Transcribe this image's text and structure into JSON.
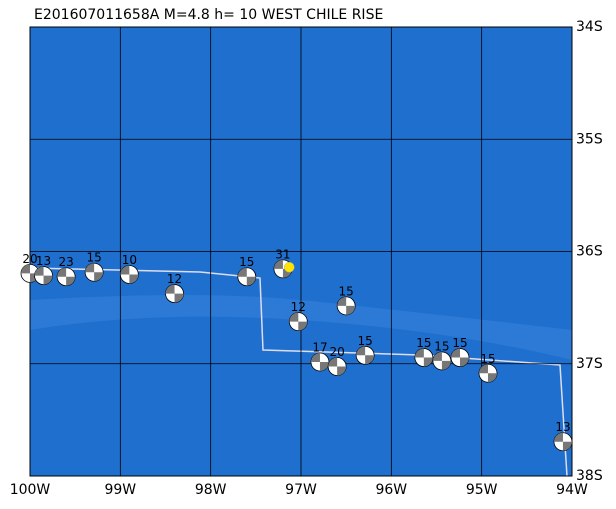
{
  "map": {
    "title": "E201607011658A M=4.8 h= 10 WEST CHILE RISE",
    "xlim": [
      -100,
      -94
    ],
    "ylim": [
      -38,
      -34
    ],
    "xticks": [
      {
        "value": -100,
        "label": "100W"
      },
      {
        "value": -99,
        "label": "99W"
      },
      {
        "value": -98,
        "label": "98W"
      },
      {
        "value": -97,
        "label": "97W"
      },
      {
        "value": -96,
        "label": "96W"
      },
      {
        "value": -95,
        "label": "95W"
      },
      {
        "value": -94,
        "label": "94W"
      }
    ],
    "yticks": [
      {
        "value": -34,
        "label": "34S"
      },
      {
        "value": -35,
        "label": "35S"
      },
      {
        "value": -36,
        "label": "36S"
      },
      {
        "value": -37,
        "label": "37S"
      },
      {
        "value": -38,
        "label": "38S"
      }
    ],
    "epicenter": {
      "lon": -97.13,
      "lat": -36.14
    },
    "events": [
      {
        "lon": -100.0,
        "lat": -36.07,
        "depth": "20"
      },
      {
        "lon": -99.85,
        "lat": -36.09,
        "depth": "13"
      },
      {
        "lon": -99.6,
        "lat": -36.1,
        "depth": "23"
      },
      {
        "lon": -99.29,
        "lat": -36.06,
        "depth": "15"
      },
      {
        "lon": -98.9,
        "lat": -36.08,
        "depth": "10"
      },
      {
        "lon": -98.4,
        "lat": -36.25,
        "depth": "12"
      },
      {
        "lon": -97.6,
        "lat": -36.1,
        "depth": "15"
      },
      {
        "lon": -97.2,
        "lat": -36.03,
        "depth": "31"
      },
      {
        "lon": -97.03,
        "lat": -36.5,
        "depth": "12"
      },
      {
        "lon": -96.5,
        "lat": -36.36,
        "depth": "15"
      },
      {
        "lon": -96.79,
        "lat": -36.86,
        "depth": "17"
      },
      {
        "lon": -96.6,
        "lat": -36.9,
        "depth": "20"
      },
      {
        "lon": -96.29,
        "lat": -36.8,
        "depth": "15"
      },
      {
        "lon": -95.64,
        "lat": -36.82,
        "depth": "15"
      },
      {
        "lon": -95.44,
        "lat": -36.85,
        "depth": "15"
      },
      {
        "lon": -95.24,
        "lat": -36.82,
        "depth": "15"
      },
      {
        "lon": -94.93,
        "lat": -36.96,
        "depth": "15"
      },
      {
        "lon": -94.1,
        "lat": -37.57,
        "depth": "13"
      }
    ]
  }
}
